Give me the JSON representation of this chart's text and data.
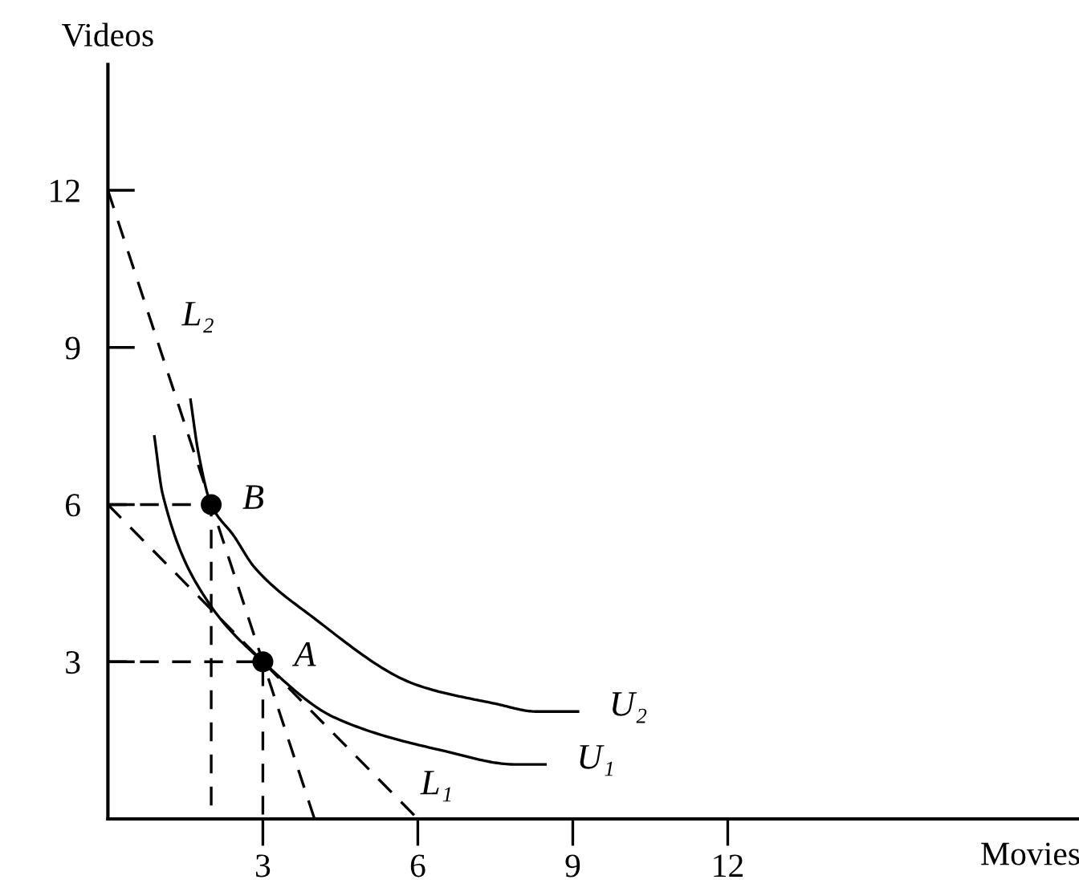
{
  "chart_data": {
    "type": "line",
    "xlabel": "Movies",
    "ylabel": "Videos",
    "xlim": [
      0,
      18.8
    ],
    "ylim": [
      0,
      14.4
    ],
    "xticks": [
      3,
      6,
      9,
      12
    ],
    "yticks": [
      3,
      6,
      9,
      12
    ],
    "grid": false,
    "legend": false,
    "series": [
      {
        "color": "#000000",
        "line_style": "dashed",
        "x": [
          0,
          4
        ],
        "values": [
          12,
          0
        ]
      },
      {
        "color": "#000000",
        "line_style": "dashed",
        "x": [
          0,
          6
        ],
        "values": [
          6,
          0
        ]
      },
      {
        "color": "#000000",
        "line_style": "solid",
        "x": [
          0.9,
          1.06,
          1.9,
          3,
          4.4,
          6.5,
          7.9,
          8.47
        ],
        "values": [
          7.3,
          6.2,
          4.2,
          3,
          1.93,
          1.3,
          1.04,
          1.04
        ]
      },
      {
        "color": "#000000",
        "line_style": "solid",
        "x": [
          1.6,
          1.75,
          2,
          2.44,
          2.84,
          3.9,
          6,
          7.5,
          8.3,
          9.1
        ],
        "values": [
          8,
          7,
          6,
          5.4,
          4.8,
          3.9,
          2.55,
          2.2,
          2.05,
          2.05
        ]
      },
      {
        "color": "#000000",
        "line_style": "dashed",
        "x": [
          0,
          2,
          2
        ],
        "values": [
          6,
          6,
          0
        ]
      },
      {
        "color": "#000000",
        "line_style": "dashed",
        "x": [
          0,
          3,
          3
        ],
        "values": [
          3,
          3,
          0
        ]
      },
      {
        "type": "scatter",
        "color": "#000000",
        "marker": "circle",
        "x": [
          3,
          2
        ],
        "values": [
          3,
          6
        ]
      }
    ],
    "annotations": [
      {
        "text": "L₂",
        "x": 0.83,
        "y": 9.5
      },
      {
        "text": "L₁",
        "x": 5.45,
        "y": 0.55
      },
      {
        "text": "U₁",
        "x": 8.47,
        "y": 1.04
      },
      {
        "text": "U₂",
        "x": 9.1,
        "y": 2.05
      },
      {
        "text": "A",
        "x": 3,
        "y": 3
      },
      {
        "text": "B",
        "x": 2,
        "y": 6
      }
    ]
  }
}
